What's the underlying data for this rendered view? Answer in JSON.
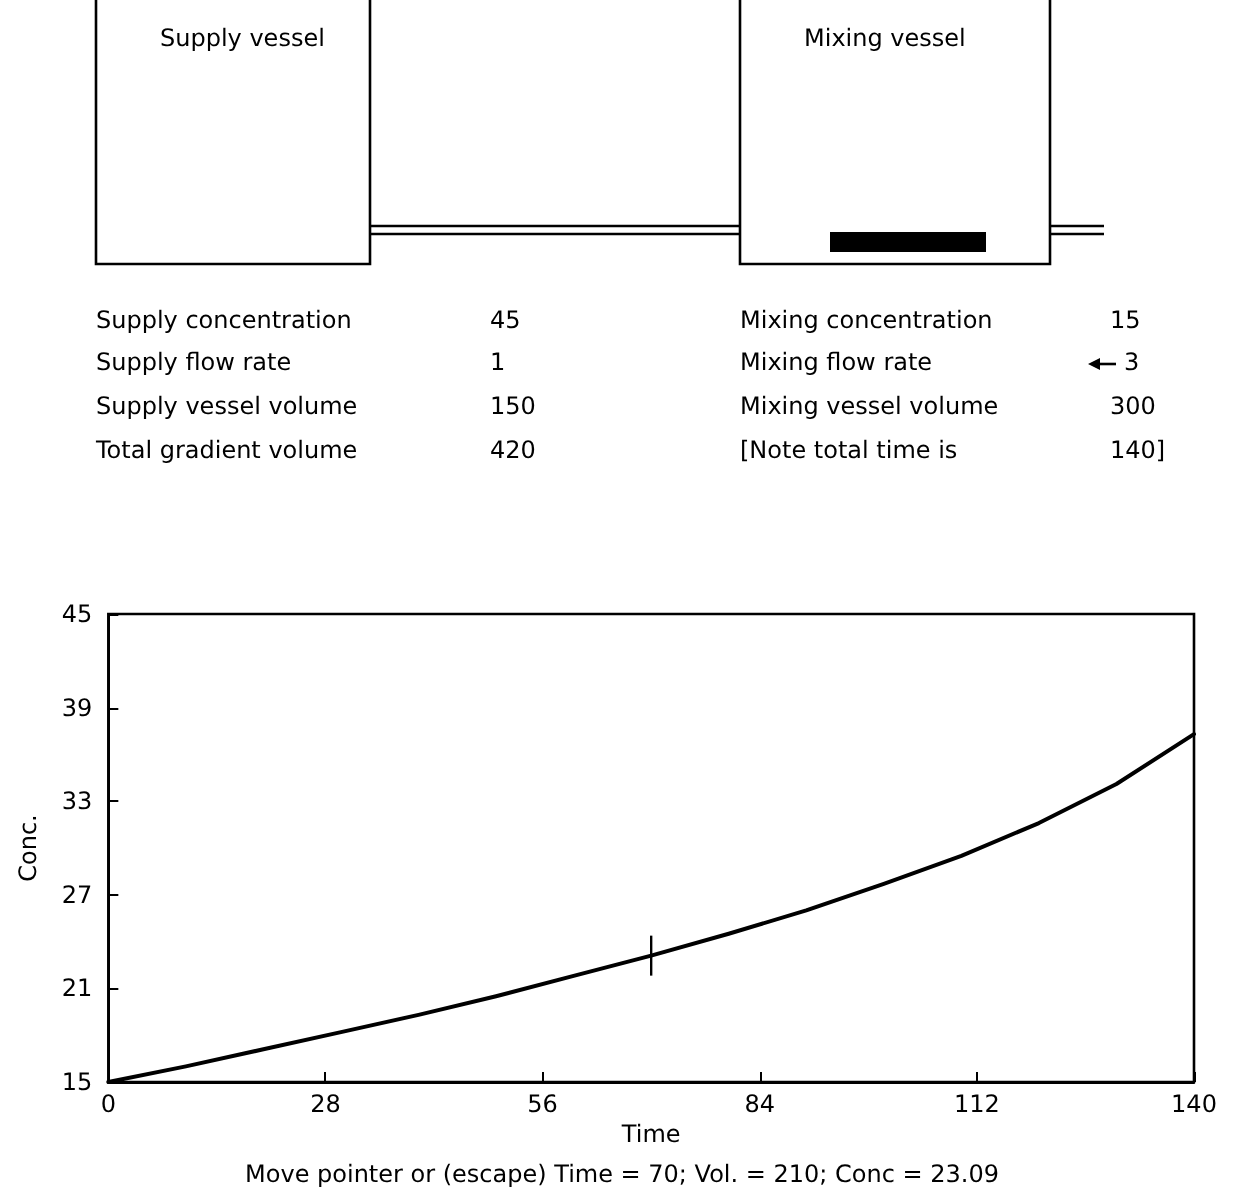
{
  "chart_data": {
    "type": "line",
    "xlabel": "Time",
    "ylabel": "Conc.",
    "x": [
      0,
      10,
      20,
      30,
      40,
      50,
      60,
      70,
      80,
      90,
      100,
      110,
      120,
      130,
      140
    ],
    "values": [
      15,
      16.0,
      17.1,
      18.2,
      19.3,
      20.5,
      21.8,
      23.1,
      24.5,
      26.0,
      27.7,
      29.5,
      31.6,
      34.1,
      37.3
    ],
    "color": "#000000",
    "xlim": [
      0,
      140
    ],
    "ylim": [
      15,
      45
    ],
    "xticks": [
      0,
      28,
      56,
      84,
      112,
      140
    ],
    "yticks": [
      15,
      21,
      27,
      33,
      39,
      45
    ],
    "grid": false,
    "marker": "none",
    "line_style": "solid",
    "annotations": [
      "Supply vessel",
      "Mixing vessel",
      "Supply concentration",
      "45",
      "Supply flow rate",
      "1",
      "Supply vessel volume",
      "150",
      "Total gradient volume",
      "420",
      "Mixing concentration",
      "15",
      "Mixing flow rate",
      "3",
      "Mixing vessel volume",
      "300",
      "[Note total time is",
      "140]",
      "Move pointer or (escape) Time = 70; Vol. = 210; Conc = 23.09"
    ]
  }
}
